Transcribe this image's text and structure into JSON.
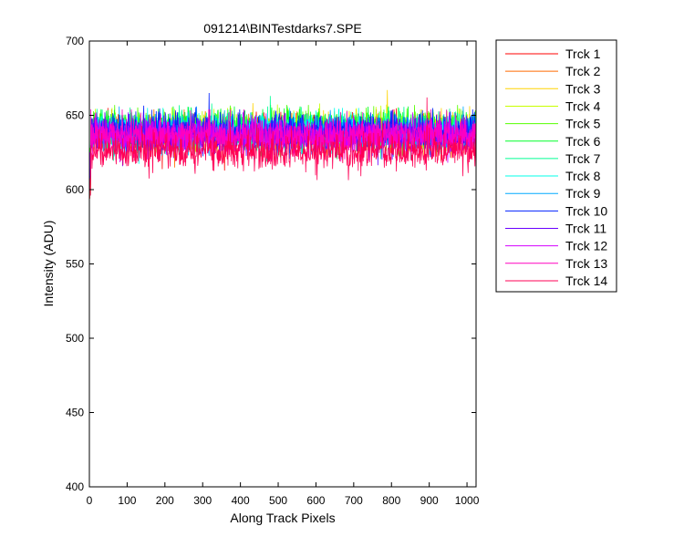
{
  "chart_data": {
    "type": "line",
    "title": "091214\\BINTestdarks7.SPE",
    "xlabel": "Along Track Pixels",
    "ylabel": "Intensity (ADU)",
    "xlim": [
      0,
      1024
    ],
    "ylim": [
      400,
      700
    ],
    "x_ticks": [
      0,
      100,
      200,
      300,
      400,
      500,
      600,
      700,
      800,
      900,
      1000
    ],
    "y_ticks": [
      400,
      450,
      500,
      550,
      600,
      650,
      700
    ],
    "grid": false,
    "legend_position": "outside-right-top",
    "x_range": [
      1,
      1024
    ],
    "series": [
      {
        "name": "Trck 1",
        "color": "#ff0000",
        "mean": 638,
        "noise": 6,
        "spike_max": 655
      },
      {
        "name": "Trck 2",
        "color": "#ff6a00",
        "mean": 638,
        "noise": 6,
        "spike_max": 654
      },
      {
        "name": "Trck 3",
        "color": "#ffd400",
        "mean": 639,
        "noise": 6,
        "spike_max": 667
      },
      {
        "name": "Trck 4",
        "color": "#c8ff00",
        "mean": 640,
        "noise": 6,
        "spike_max": 658
      },
      {
        "name": "Trck 5",
        "color": "#55ff00",
        "mean": 641,
        "noise": 6,
        "spike_max": 657
      },
      {
        "name": "Trck 6",
        "color": "#00ff2a",
        "mean": 641,
        "noise": 6,
        "spike_max": 656
      },
      {
        "name": "Trck 7",
        "color": "#00ff95",
        "mean": 640,
        "noise": 6,
        "spike_max": 663
      },
      {
        "name": "Trck 8",
        "color": "#00ffea",
        "mean": 639,
        "noise": 6,
        "spike_max": 655
      },
      {
        "name": "Trck 9",
        "color": "#00aaff",
        "mean": 638,
        "noise": 6,
        "spike_max": 656
      },
      {
        "name": "Trck 10",
        "color": "#0020ff",
        "mean": 640,
        "noise": 6,
        "spike_max": 665
      },
      {
        "name": "Trck 11",
        "color": "#6a00ff",
        "mean": 637,
        "noise": 6,
        "spike_max": 652
      },
      {
        "name": "Trck 12",
        "color": "#d400ff",
        "mean": 636,
        "noise": 6,
        "spike_max": 652
      },
      {
        "name": "Trck 13",
        "color": "#ff00c0",
        "mean": 636,
        "noise": 6,
        "spike_max": 654
      },
      {
        "name": "Trck 14",
        "color": "#ff0055",
        "mean": 626,
        "noise": 6,
        "spike_max": 662
      }
    ]
  }
}
